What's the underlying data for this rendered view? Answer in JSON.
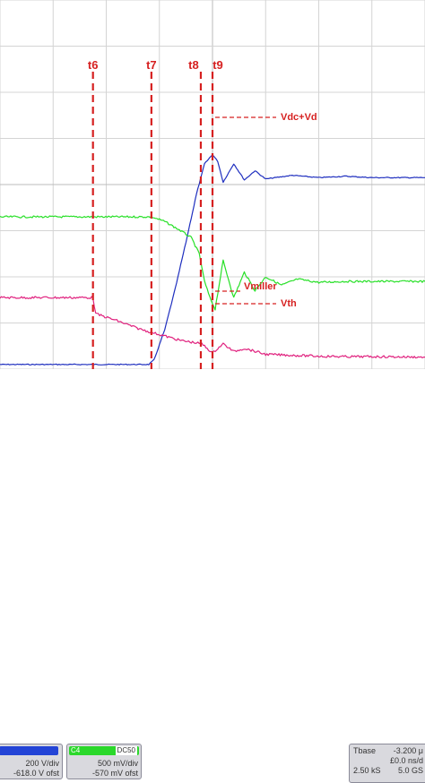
{
  "colors": {
    "grid": "#d4d4d4",
    "grid_center": "#bbbbbb",
    "ch_blue": "#1f2fbf",
    "ch_green": "#28e028",
    "ch_pink": "#e0217e",
    "marker": "#d62020",
    "panel_bg": "#d9d9de",
    "panel_border": "#8a8a98",
    "panel_blue_header": "#2344d6",
    "panel_green_header": "#2bd82b"
  },
  "markers": [
    {
      "label": "t6",
      "x_div": 1.75
    },
    {
      "label": "t7",
      "x_div": 2.85
    },
    {
      "label": "t8",
      "x_div": 3.78
    },
    {
      "label": "t9",
      "x_div": 4.0
    }
  ],
  "annotations": {
    "vdc_vd": "Vdc+Vd",
    "vmiller": "Vmiller",
    "vth": "Vth"
  },
  "chart_data": {
    "type": "line",
    "title": "",
    "xlabel": "",
    "ylabel": "",
    "x_divisions": 8,
    "y_divisions": 8,
    "xlim": [
      0,
      8
    ],
    "ylim": [
      0,
      8
    ],
    "grid": true,
    "series": [
      {
        "color": "#1f2fbf",
        "x": [
          0,
          2.8,
          2.9,
          3.1,
          3.3,
          3.5,
          3.7,
          3.85,
          4.0,
          4.1,
          4.2,
          4.4,
          4.6,
          4.8,
          5.0,
          5.5,
          6.0,
          6.5,
          7.0,
          8.0
        ],
        "y": [
          0.1,
          0.1,
          0.2,
          0.85,
          1.75,
          2.75,
          3.8,
          4.45,
          4.65,
          4.5,
          4.05,
          4.45,
          4.1,
          4.3,
          4.12,
          4.2,
          4.15,
          4.18,
          4.15,
          4.15
        ]
      },
      {
        "color": "#28e028",
        "x": [
          0,
          2.85,
          3.1,
          3.4,
          3.6,
          3.75,
          3.85,
          3.95,
          4.05,
          4.2,
          4.4,
          4.6,
          4.8,
          5.0,
          5.3,
          5.6,
          6.0,
          6.5,
          7.0,
          8.0
        ],
        "y": [
          3.3,
          3.3,
          3.2,
          3.0,
          2.85,
          2.5,
          1.9,
          1.55,
          1.3,
          2.35,
          1.55,
          2.1,
          1.7,
          2.0,
          1.82,
          1.95,
          1.88,
          1.9,
          1.9,
          1.9
        ]
      },
      {
        "color": "#e0217e",
        "x": [
          0,
          1.75,
          1.8,
          2.2,
          2.6,
          3.0,
          3.4,
          3.8,
          4.0,
          4.2,
          4.4,
          4.6,
          5.0,
          5.5,
          6.0,
          6.5,
          7.0,
          8.0
        ],
        "y": [
          1.55,
          1.55,
          1.2,
          1.05,
          0.88,
          0.75,
          0.62,
          0.55,
          0.35,
          0.55,
          0.38,
          0.45,
          0.32,
          0.3,
          0.28,
          0.27,
          0.27,
          0.26
        ]
      }
    ]
  },
  "status": {
    "ch_blue": {
      "label": "",
      "coupling": "",
      "line1": "200 V/div",
      "line2": "-618.0 V ofst"
    },
    "ch_green": {
      "label": "C4",
      "coupling": "DC50",
      "line1": "500 mV/div",
      "line2": "-570 mV ofst"
    },
    "timebase": {
      "label": "Tbase",
      "value": "-3.200 μ",
      "line1": "£0.0 ns/d",
      "line2": "2.50 kS",
      "line3": "5.0 GS"
    }
  }
}
